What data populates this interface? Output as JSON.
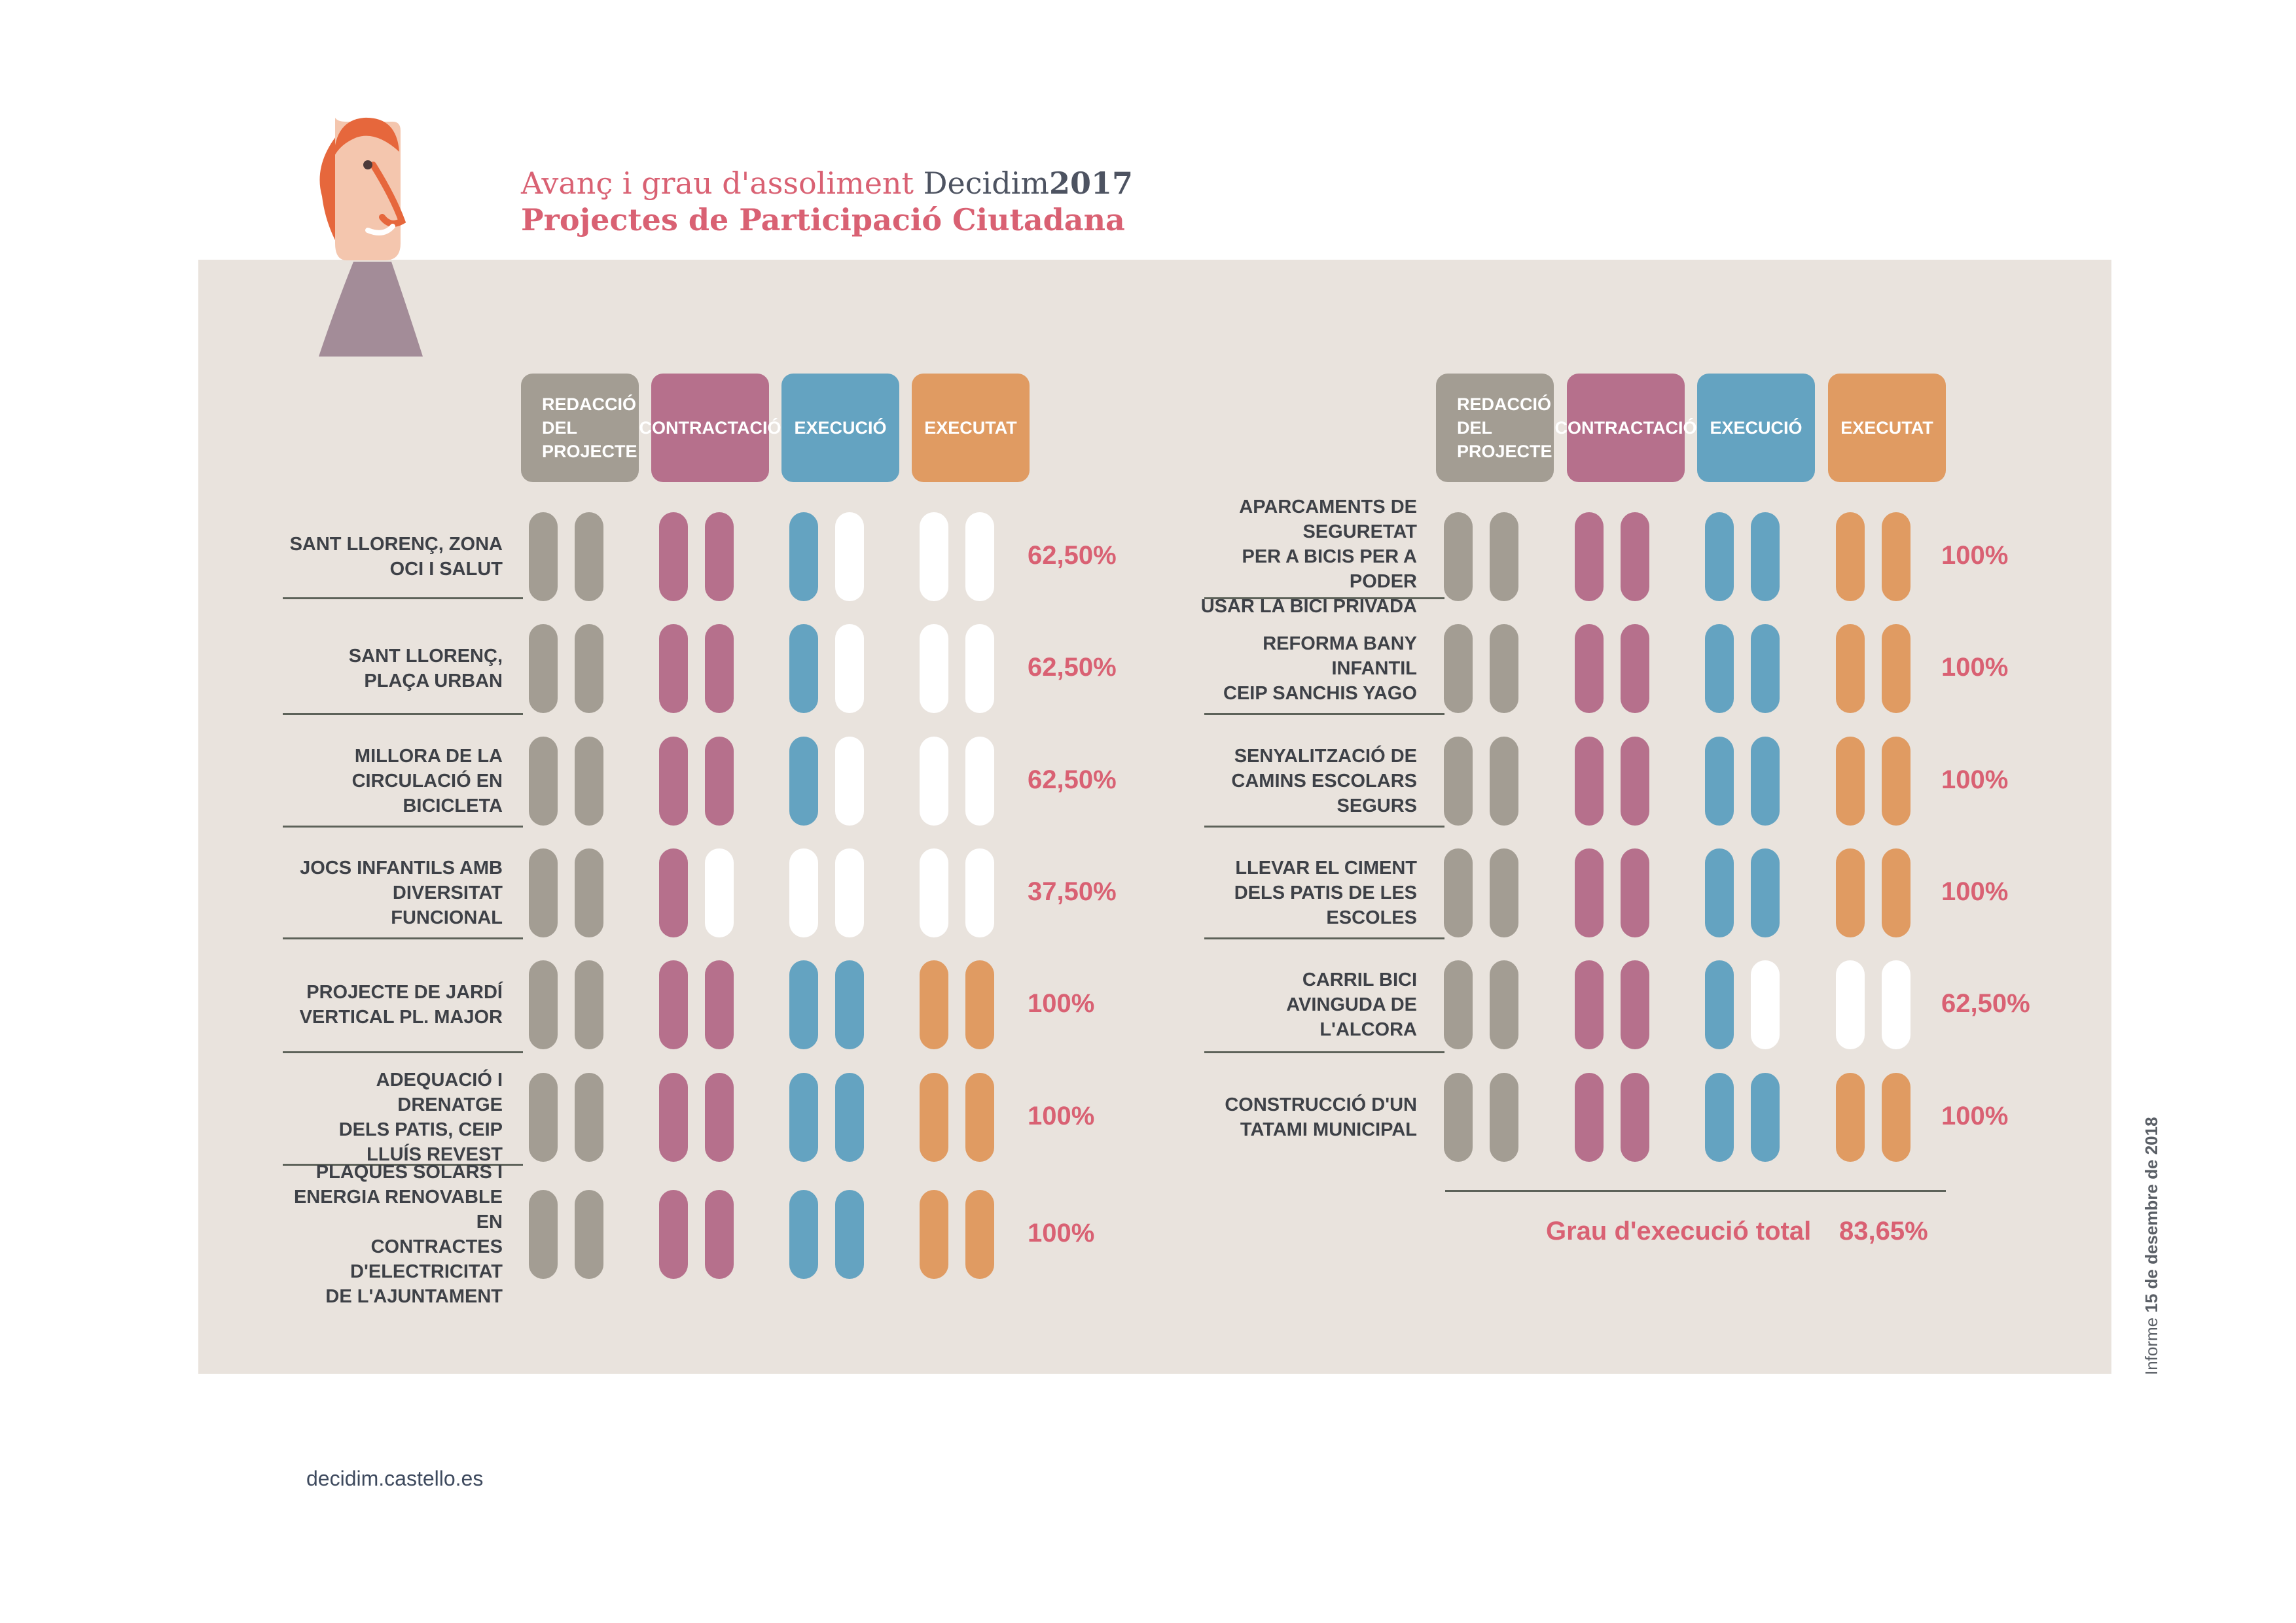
{
  "title": {
    "line1_prefix": "Avanç i grau d'assoliment ",
    "line1_brand": "Decidim",
    "line1_year": "2017",
    "line2": "Projectes de Participació Ciutadana"
  },
  "footer": {
    "url": "decidim.castello.es",
    "report_prefix": "Informe ",
    "report_date": "15 de desembre de 2018"
  },
  "colors": {
    "redaccio": "#a39d93",
    "contractacio": "#b6708c",
    "execucio": "#64a3c1",
    "executat": "#e09b62",
    "empty": "#ffffff",
    "percent_text": "#d96173",
    "panel": "#e9e3dd"
  },
  "chart_data": {
    "type": "table",
    "phases": [
      "REDACCIÓ\nDEL\nPROJECTE",
      "CONTRACTACIÓ",
      "EXECUCIÓ",
      "EXECUTAT"
    ],
    "left_projects": [
      {
        "name": "SANT LLORENÇ, ZONA\nOCI I SALUT",
        "steps": [
          2,
          2,
          1,
          0
        ],
        "percent": "62,50%"
      },
      {
        "name": "SANT LLORENÇ,\nPLAÇA URBAN",
        "steps": [
          2,
          2,
          1,
          0
        ],
        "percent": "62,50%"
      },
      {
        "name": "MILLORA DE LA\nCIRCULACIÓ EN\nBICICLETA",
        "steps": [
          2,
          2,
          1,
          0
        ],
        "percent": "62,50%"
      },
      {
        "name": "JOCS INFANTILS AMB\nDIVERSITAT FUNCIONAL",
        "steps": [
          2,
          1,
          0,
          0
        ],
        "percent": "37,50%"
      },
      {
        "name": "PROJECTE DE JARDÍ\nVERTICAL PL. MAJOR",
        "steps": [
          2,
          2,
          2,
          2
        ],
        "percent": "100%"
      },
      {
        "name": "ADEQUACIÓ I DRENATGE\nDELS PATIS, CEIP\nLLUÍS REVEST",
        "steps": [
          2,
          2,
          2,
          2
        ],
        "percent": "100%"
      },
      {
        "name": "PLAQUES SOLARS I\nENERGIA RENOVABLE EN\nCONTRACTES D'ELECTRICITAT\nDE L'AJUNTAMENT",
        "steps": [
          2,
          2,
          2,
          2
        ],
        "percent": "100%"
      }
    ],
    "right_projects": [
      {
        "name": "APARCAMENTS DE SEGURETAT\nPER A BICIS PER A PODER\nUSAR LA BICI PRIVADA",
        "steps": [
          2,
          2,
          2,
          2
        ],
        "percent": "100%"
      },
      {
        "name": "REFORMA BANY\nINFANTIL\nCEIP SANCHIS YAGO",
        "steps": [
          2,
          2,
          2,
          2
        ],
        "percent": "100%"
      },
      {
        "name": "SENYALITZACIÓ DE\nCAMINS ESCOLARS\nSEGURS",
        "steps": [
          2,
          2,
          2,
          2
        ],
        "percent": "100%"
      },
      {
        "name": "LLEVAR EL CIMENT\nDELS PATIS DE LES\nESCOLES",
        "steps": [
          2,
          2,
          2,
          2
        ],
        "percent": "100%"
      },
      {
        "name": "CARRIL BICI\nAVINGUDA DE L'ALCORA",
        "steps": [
          2,
          2,
          1,
          0
        ],
        "percent": "62,50%"
      },
      {
        "name": "CONSTRUCCIÓ D'UN\nTATAMI MUNICIPAL",
        "steps": [
          2,
          2,
          2,
          2
        ],
        "percent": "100%"
      }
    ],
    "total_label": "Grau d'execució total",
    "total_value": "83,65%"
  }
}
